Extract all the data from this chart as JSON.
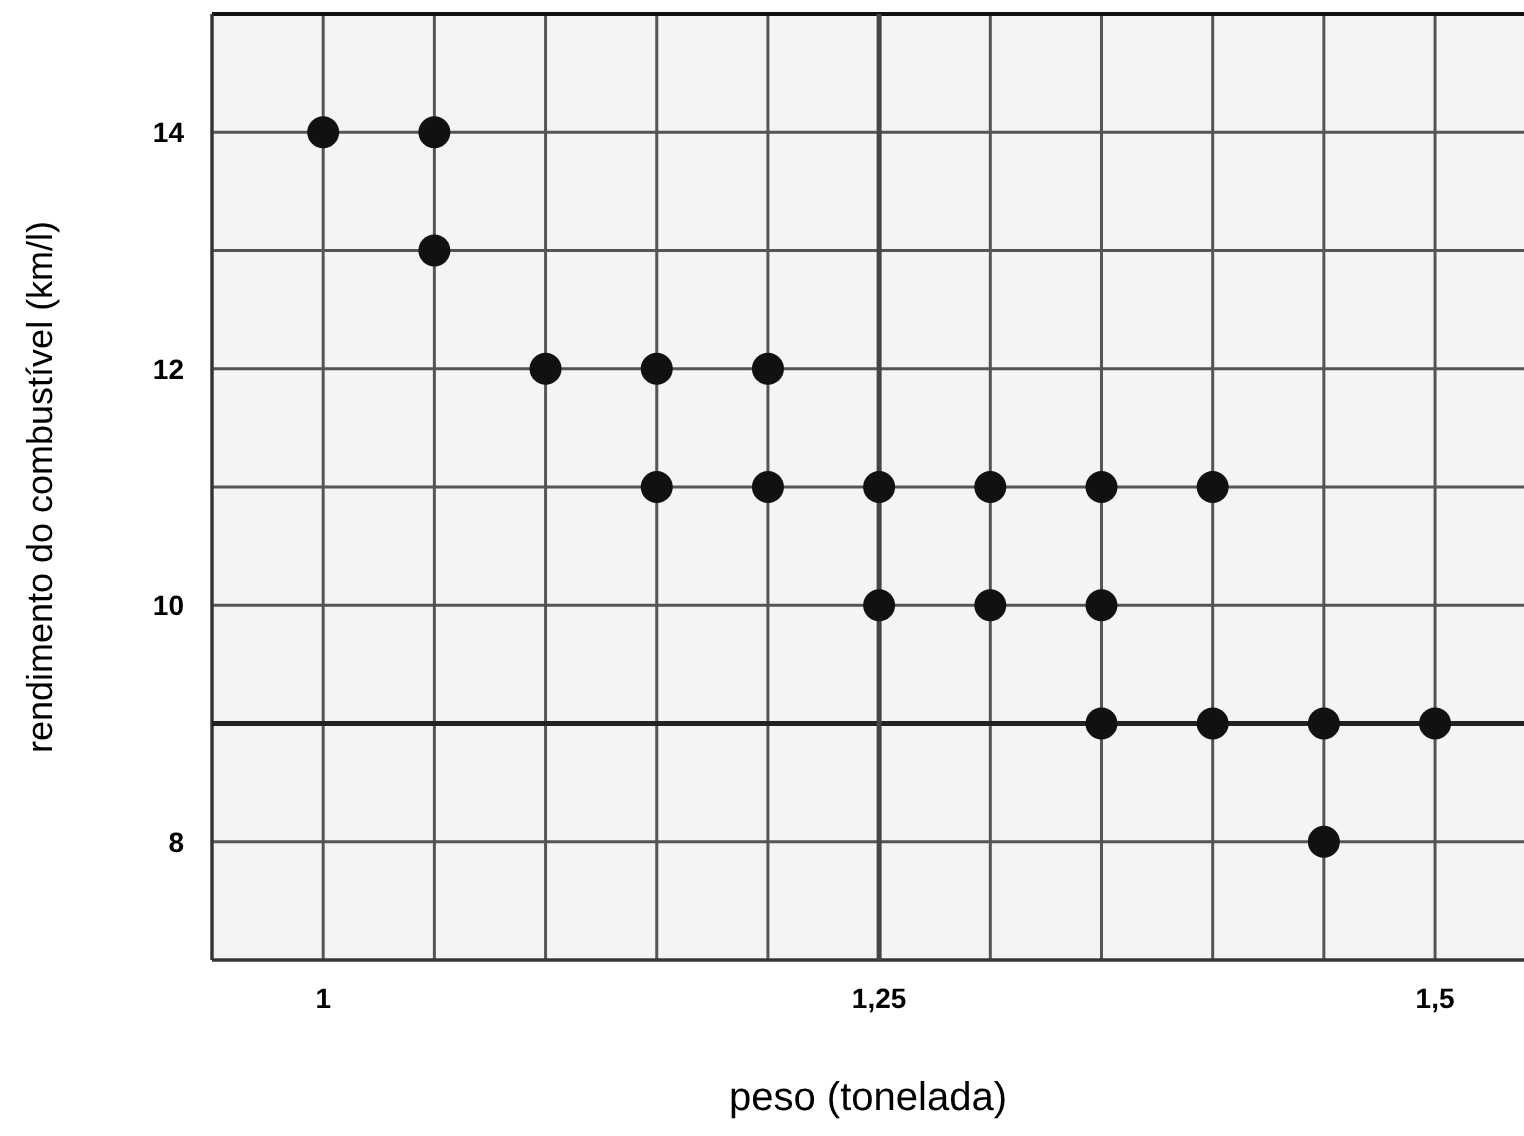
{
  "chart_data": {
    "type": "scatter",
    "xlabel": "peso (tonelada)",
    "ylabel": "rendimento do combustível (km/l)",
    "x": [
      1,
      1.05,
      1.05,
      1.1,
      1.15,
      1.2,
      1.15,
      1.2,
      1.25,
      1.25,
      1.3,
      1.35,
      1.4,
      1.3,
      1.35,
      1.35,
      1.4,
      1.45,
      1.5,
      1.45
    ],
    "values": [
      14,
      14,
      13,
      12,
      12,
      12,
      11,
      11,
      11,
      10,
      11,
      11,
      11,
      10,
      10,
      9,
      9,
      9,
      9,
      8
    ],
    "color": "#111111",
    "marker": "circle",
    "grid": true,
    "xlim": [
      0.95,
      1.54
    ],
    "ylim": [
      7,
      15
    ],
    "xticks": [
      {
        "value": 0.95,
        "label": null
      },
      {
        "value": 1,
        "label": "1"
      },
      {
        "value": 1.05,
        "label": null
      },
      {
        "value": 1.1,
        "label": null
      },
      {
        "value": 1.15,
        "label": null
      },
      {
        "value": 1.2,
        "label": null
      },
      {
        "value": 1.25,
        "label": "1,25"
      },
      {
        "value": 1.3,
        "label": null
      },
      {
        "value": 1.35,
        "label": null
      },
      {
        "value": 1.4,
        "label": null
      },
      {
        "value": 1.45,
        "label": null
      },
      {
        "value": 1.5,
        "label": "1,5"
      }
    ],
    "yticks": [
      {
        "value": 7,
        "label": null
      },
      {
        "value": 8,
        "label": "8"
      },
      {
        "value": 9,
        "label": null
      },
      {
        "value": 10,
        "label": "10"
      },
      {
        "value": 11,
        "label": null
      },
      {
        "value": 12,
        "label": "12"
      },
      {
        "value": 13,
        "label": null
      },
      {
        "value": 14,
        "label": "14"
      }
    ],
    "ref_lines": [
      {
        "axis": "y",
        "value": 9,
        "color": "#222222"
      },
      {
        "axis": "x",
        "value": 1.25,
        "color": "#444444"
      }
    ]
  }
}
